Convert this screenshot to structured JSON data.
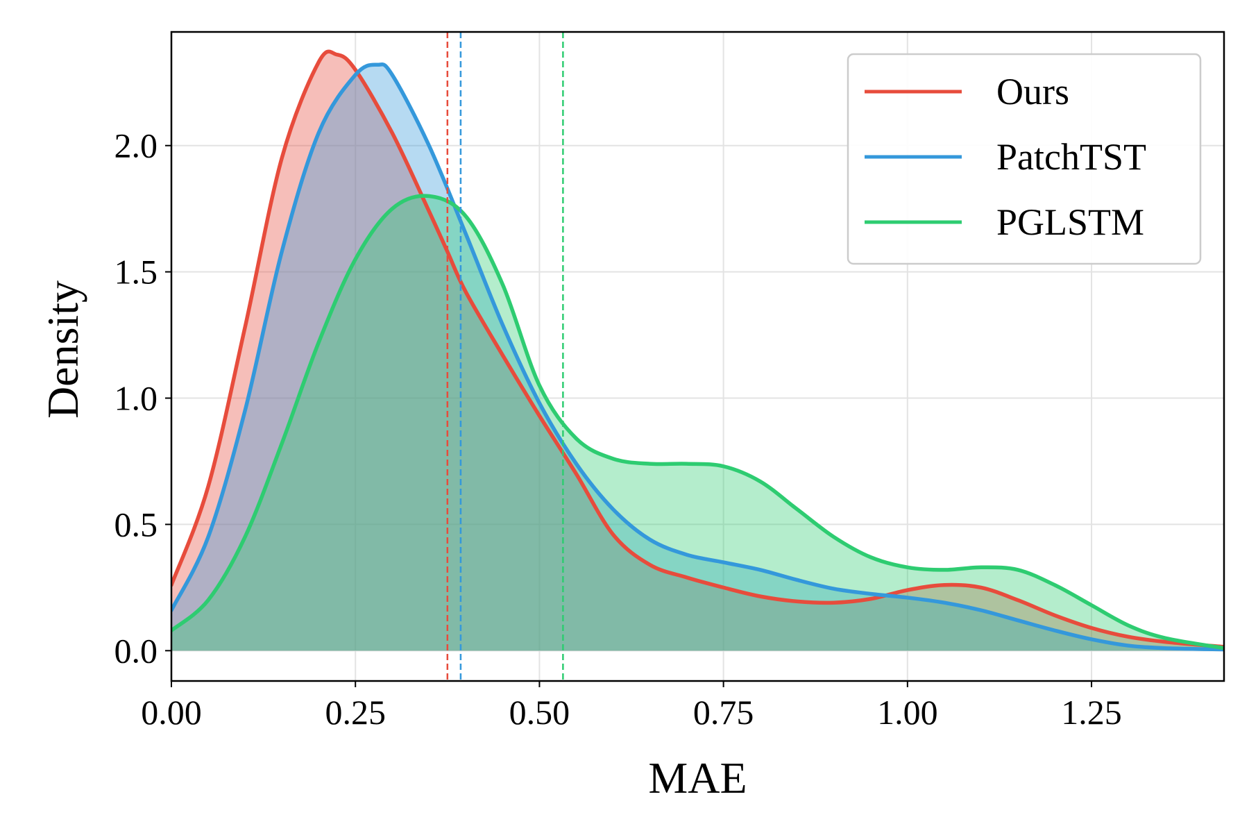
{
  "chart_data": {
    "type": "line",
    "subtype": "density",
    "title": "",
    "xlabel": "MAE",
    "ylabel": "Density",
    "xlim": [
      0.0,
      1.43
    ],
    "ylim": [
      -0.12,
      2.45
    ],
    "xticks": [
      0.0,
      0.25,
      0.5,
      0.75,
      1.0,
      1.25
    ],
    "xtick_labels": [
      "0.00",
      "0.25",
      "0.50",
      "0.75",
      "1.00",
      "1.25"
    ],
    "yticks": [
      0.0,
      0.5,
      1.0,
      1.5,
      2.0
    ],
    "ytick_labels": [
      "0.0",
      "0.5",
      "1.0",
      "1.5",
      "2.0"
    ],
    "grid": true,
    "legend_position": "top-right",
    "series": [
      {
        "name": "Ours",
        "color": "#e74c3c",
        "fill": true,
        "mean_line": 0.375,
        "x": [
          0.0,
          0.05,
          0.1,
          0.15,
          0.2,
          0.225,
          0.25,
          0.3,
          0.35,
          0.375,
          0.4,
          0.45,
          0.5,
          0.55,
          0.6,
          0.65,
          0.7,
          0.75,
          0.8,
          0.85,
          0.9,
          0.95,
          1.0,
          1.05,
          1.1,
          1.15,
          1.2,
          1.25,
          1.3,
          1.35,
          1.43
        ],
        "y": [
          0.26,
          0.65,
          1.28,
          1.95,
          2.33,
          2.36,
          2.3,
          2.05,
          1.74,
          1.58,
          1.42,
          1.17,
          0.93,
          0.7,
          0.46,
          0.34,
          0.29,
          0.25,
          0.215,
          0.195,
          0.19,
          0.205,
          0.24,
          0.26,
          0.25,
          0.2,
          0.14,
          0.09,
          0.055,
          0.035,
          0.015
        ]
      },
      {
        "name": "PatchTST",
        "color": "#3498db",
        "fill": true,
        "mean_line": 0.393,
        "x": [
          0.0,
          0.05,
          0.1,
          0.15,
          0.2,
          0.25,
          0.28,
          0.3,
          0.35,
          0.4,
          0.45,
          0.5,
          0.55,
          0.6,
          0.65,
          0.7,
          0.75,
          0.8,
          0.85,
          0.9,
          0.95,
          1.0,
          1.05,
          1.1,
          1.15,
          1.2,
          1.25,
          1.3,
          1.35,
          1.43
        ],
        "y": [
          0.16,
          0.45,
          0.95,
          1.58,
          2.05,
          2.28,
          2.32,
          2.28,
          2.0,
          1.65,
          1.29,
          0.98,
          0.74,
          0.56,
          0.44,
          0.38,
          0.35,
          0.32,
          0.28,
          0.245,
          0.225,
          0.21,
          0.19,
          0.16,
          0.12,
          0.08,
          0.045,
          0.02,
          0.01,
          0.005
        ]
      },
      {
        "name": "PGLSTM",
        "color": "#2ecc71",
        "fill": true,
        "mean_line": 0.532,
        "x": [
          0.0,
          0.05,
          0.1,
          0.15,
          0.2,
          0.25,
          0.3,
          0.35,
          0.4,
          0.45,
          0.5,
          0.55,
          0.6,
          0.65,
          0.7,
          0.75,
          0.8,
          0.85,
          0.9,
          0.95,
          1.0,
          1.05,
          1.1,
          1.15,
          1.2,
          1.25,
          1.3,
          1.35,
          1.43
        ],
        "y": [
          0.08,
          0.2,
          0.45,
          0.82,
          1.22,
          1.55,
          1.75,
          1.8,
          1.72,
          1.45,
          1.05,
          0.84,
          0.76,
          0.74,
          0.74,
          0.73,
          0.67,
          0.56,
          0.45,
          0.37,
          0.33,
          0.32,
          0.33,
          0.32,
          0.26,
          0.18,
          0.1,
          0.05,
          0.01
        ]
      }
    ]
  }
}
